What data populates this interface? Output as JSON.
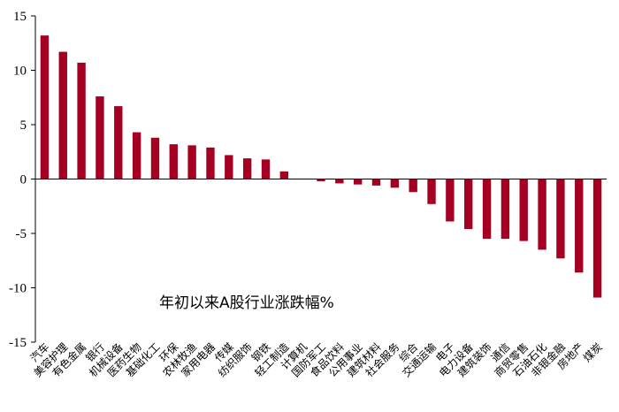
{
  "chart_data": {
    "type": "bar",
    "annotation": "年初以来A股行业涨跌幅%",
    "categories": [
      "汽车",
      "美容护理",
      "有色金属",
      "银行",
      "机械设备",
      "医药生物",
      "基础化工",
      "环保",
      "农林牧渔",
      "家用电器",
      "传媒",
      "纺织服饰",
      "钢铁",
      "轻工制造",
      "计算机",
      "国防军工",
      "食品饮料",
      "公用事业",
      "建筑材料",
      "社会服务",
      "综合",
      "交通运输",
      "电子",
      "电力设备",
      "建筑装饰",
      "通信",
      "商贸零售",
      "石油石化",
      "非银金融",
      "房地产",
      "煤炭"
    ],
    "values": [
      13.2,
      11.7,
      10.7,
      7.6,
      6.7,
      4.3,
      3.8,
      3.2,
      3.1,
      2.9,
      2.2,
      1.9,
      1.8,
      0.7,
      0.0,
      -0.2,
      -0.4,
      -0.5,
      -0.6,
      -0.8,
      -1.2,
      -2.3,
      -3.9,
      -4.6,
      -5.5,
      -5.5,
      -5.7,
      -6.5,
      -7.3,
      -8.6,
      -10.9
    ],
    "ylim": [
      -15,
      15
    ],
    "yticks": [
      -15,
      -10,
      -5,
      0,
      5,
      10,
      15
    ],
    "bar_color": "#A50021",
    "grid": false,
    "legend": "none"
  }
}
